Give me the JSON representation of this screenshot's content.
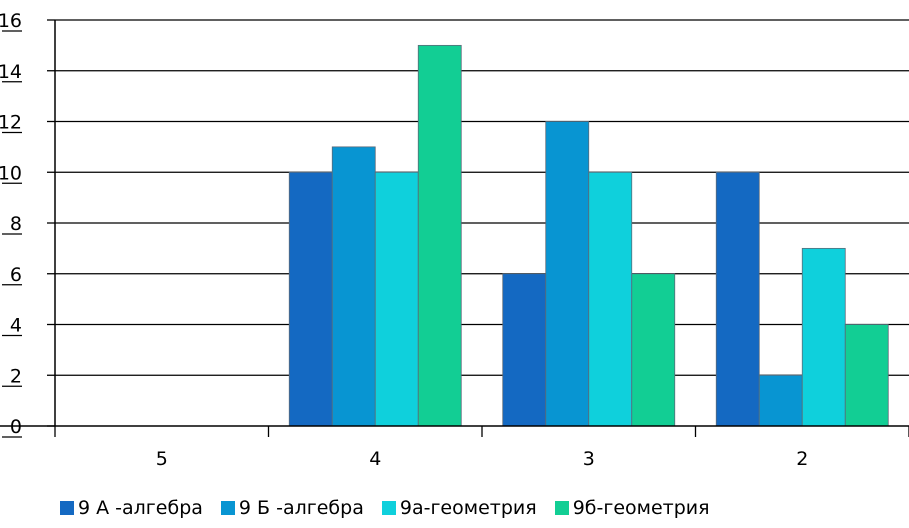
{
  "chart_data": {
    "type": "bar",
    "categories": [
      "5",
      "4",
      "3",
      "2"
    ],
    "series": [
      {
        "name": "9 А -алгебра",
        "values": [
          0,
          10,
          6,
          10
        ],
        "color": "#1469C2"
      },
      {
        "name": "9 Б -алгебра",
        "values": [
          0,
          11,
          12,
          2
        ],
        "color": "#0895D2"
      },
      {
        "name": "9а-геометрия",
        "values": [
          0,
          10,
          10,
          7
        ],
        "color": "#0FD0DC"
      },
      {
        "name": "9б-геометрия",
        "values": [
          0,
          15,
          6,
          4
        ],
        "color": "#12CE94"
      }
    ],
    "yticks": [
      "0",
      "2",
      "4",
      "6",
      "8",
      "10",
      "12",
      "14",
      "16"
    ],
    "ylim": [
      0,
      16
    ],
    "grid": true,
    "legend_position": "bottom"
  }
}
